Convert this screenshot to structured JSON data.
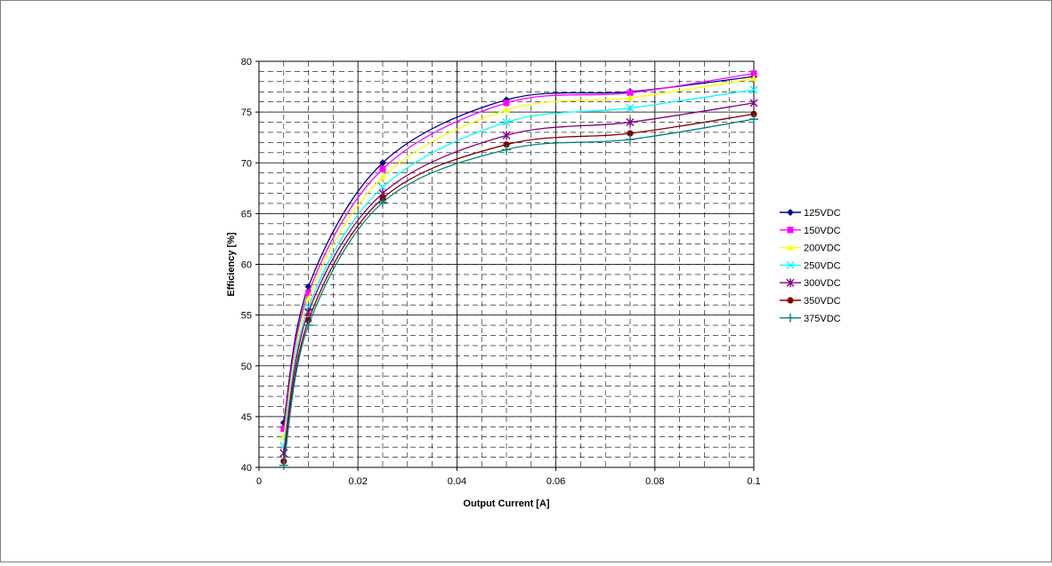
{
  "chart_data": {
    "type": "line",
    "title": "",
    "xlabel": "Output Current [A]",
    "ylabel": "Efficiency [%]",
    "xlim": [
      0,
      0.1
    ],
    "ylim": [
      40,
      80
    ],
    "x_ticks": [
      0,
      0.02,
      0.04,
      0.06,
      0.08,
      0.1
    ],
    "x_tick_labels": [
      "0",
      "0.02",
      "0.04",
      "0.06",
      "0.08",
      "0.1"
    ],
    "y_ticks": [
      40,
      45,
      50,
      55,
      60,
      65,
      70,
      75,
      80
    ],
    "y_tick_labels": [
      "40",
      "45",
      "50",
      "55",
      "60",
      "65",
      "70",
      "75",
      "80"
    ],
    "grid": true,
    "legend_position": "right",
    "x": [
      0.005,
      0.01,
      0.025,
      0.05,
      0.075,
      0.1
    ],
    "series": [
      {
        "name": "125VDC",
        "color": "#000080",
        "marker": "diamond",
        "values": [
          44.4,
          57.8,
          70.0,
          76.2,
          77.0,
          78.5
        ]
      },
      {
        "name": "150VDC",
        "color": "#ff00ff",
        "marker": "square",
        "values": [
          43.8,
          57.2,
          69.4,
          75.9,
          76.9,
          78.8
        ]
      },
      {
        "name": "200VDC",
        "color": "#ffff00",
        "marker": "triangle",
        "values": [
          43.0,
          56.6,
          68.6,
          75.2,
          76.4,
          78.3
        ]
      },
      {
        "name": "250VDC",
        "color": "#00ffff",
        "marker": "x",
        "values": [
          42.1,
          55.8,
          67.6,
          74.0,
          75.4,
          77.2
        ]
      },
      {
        "name": "300VDC",
        "color": "#800080",
        "marker": "star",
        "values": [
          41.4,
          55.3,
          67.0,
          72.7,
          74.0,
          75.9
        ]
      },
      {
        "name": "350VDC",
        "color": "#800000",
        "marker": "circle",
        "values": [
          40.6,
          54.5,
          66.5,
          71.8,
          72.9,
          74.8
        ]
      },
      {
        "name": "375VDC",
        "color": "#008080",
        "marker": "plus",
        "values": [
          40.2,
          54.0,
          66.1,
          71.3,
          72.3,
          74.3
        ]
      }
    ]
  }
}
